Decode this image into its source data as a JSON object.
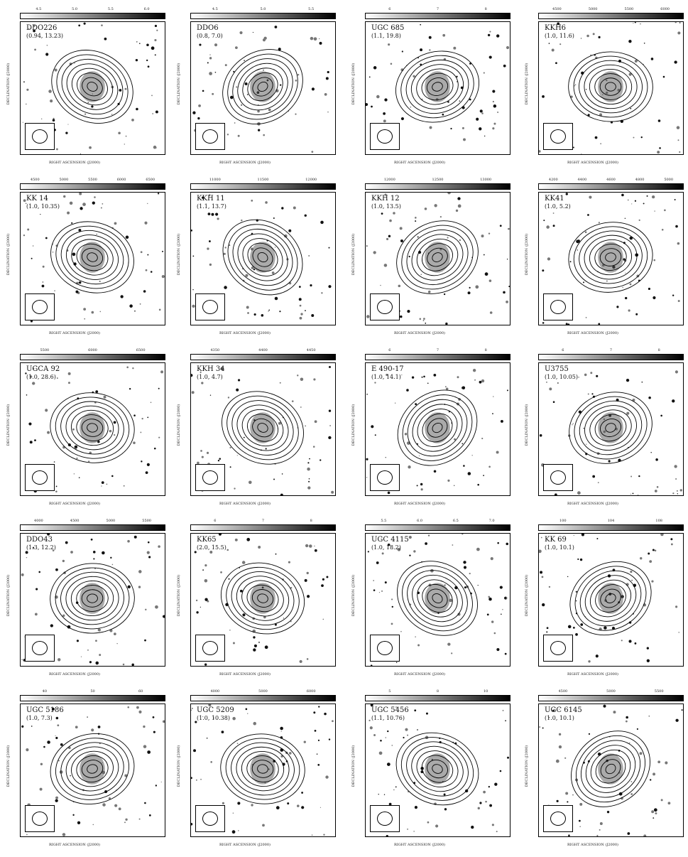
{
  "axes": {
    "xlabel": "RIGHT ASCENSION (J2000)",
    "ylabel": "DECLINATION (J2000)"
  },
  "panels": [
    {
      "name": "DDO226",
      "params": "(0.94, 13.23)",
      "cbar_ticks": [
        "4.5",
        "5.0",
        "5.5",
        "6.0"
      ]
    },
    {
      "name": "DDO6",
      "params": "(0.8, 7.0)",
      "cbar_ticks": [
        "4.5",
        "5.0",
        "5.5"
      ]
    },
    {
      "name": "UGC 685",
      "params": "(1.1, 19.8)",
      "cbar_ticks": [
        "6",
        "7",
        "8"
      ]
    },
    {
      "name": "KKH6",
      "params": "(1.0, 11.6)",
      "cbar_ticks": [
        "4500",
        "5000",
        "5500",
        "6000"
      ]
    },
    {
      "name": "KK 14",
      "params": "(1.0, 10.35)",
      "cbar_ticks": [
        "4500",
        "5000",
        "5500",
        "6000",
        "6500"
      ]
    },
    {
      "name": "KKH 11",
      "params": "(1.1, 13.7)",
      "cbar_ticks": [
        "11000",
        "11500",
        "12000"
      ]
    },
    {
      "name": "KKH 12",
      "params": "(1.0, 13.5)",
      "cbar_ticks": [
        "12000",
        "12500",
        "13000"
      ]
    },
    {
      "name": "KK41",
      "params": "(1.0, 5.2)",
      "cbar_ticks": [
        "4200",
        "4400",
        "4600",
        "4800",
        "5000"
      ]
    },
    {
      "name": "UGCA 92",
      "params": "(1.0, 28.6)",
      "cbar_ticks": [
        "5500",
        "6000",
        "6500"
      ]
    },
    {
      "name": "KKH 34",
      "params": "(1.0, 4.7)",
      "cbar_ticks": [
        "4350",
        "4400",
        "4450"
      ]
    },
    {
      "name": "E 490-17",
      "params": "(1.0, 14.1)",
      "cbar_ticks": [
        "6",
        "7",
        "8"
      ]
    },
    {
      "name": "U3755",
      "params": "(1.0, 10.05)",
      "cbar_ticks": [
        "6",
        "7",
        "8"
      ]
    },
    {
      "name": "DDO43",
      "params": "(1.3, 12.2)",
      "cbar_ticks": [
        "4000",
        "4500",
        "5000",
        "5500"
      ]
    },
    {
      "name": "KK65",
      "params": "(2.0, 15.5)",
      "cbar_ticks": [
        "6",
        "7",
        "8"
      ]
    },
    {
      "name": "UGC 4115",
      "params": "(1.0, 18.2)",
      "cbar_ticks": [
        "5.5",
        "6.0",
        "6.5",
        "7.0"
      ]
    },
    {
      "name": "KK 69",
      "params": "(1.0, 10.1)",
      "cbar_ticks": [
        "100",
        "104",
        "108"
      ]
    },
    {
      "name": "UGC 5186",
      "params": "(1.0, 7.3)",
      "cbar_ticks": [
        "40",
        "50",
        "60"
      ]
    },
    {
      "name": "UGC 5209",
      "params": "(1.0, 10.38)",
      "cbar_ticks": [
        "4000",
        "5000",
        "6000"
      ]
    },
    {
      "name": "UGC 5456",
      "params": "(1.1, 10.76)",
      "cbar_ticks": [
        "5",
        "8",
        "10"
      ]
    },
    {
      "name": "UGC 6145",
      "params": "(1.0, 10.1)",
      "cbar_ticks": [
        "4500",
        "5000",
        "5500"
      ]
    }
  ]
}
